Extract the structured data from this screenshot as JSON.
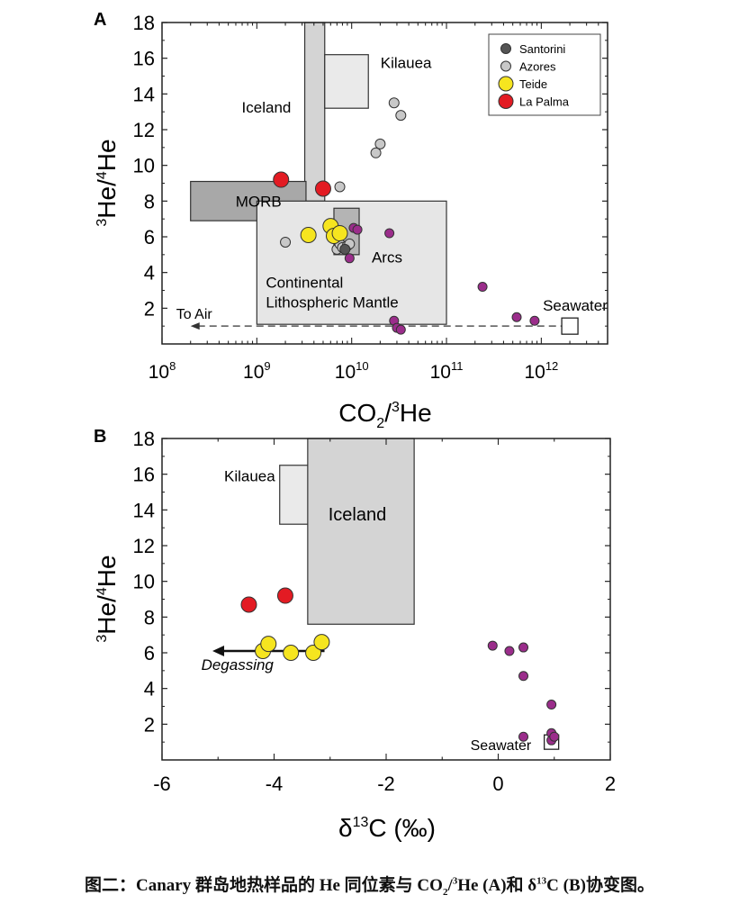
{
  "chart_data": [
    {
      "panel": "A",
      "type": "scatter",
      "xlabel": "CO2/3He",
      "ylabel": "3He/4He",
      "xscale": "log",
      "xlim": [
        100000000,
        5000000000000
      ],
      "ylim": [
        0,
        18
      ],
      "xticks": [
        "10^8",
        "10^9",
        "10^10",
        "10^11",
        "10^12"
      ],
      "yticks": [
        2,
        4,
        6,
        8,
        10,
        12,
        14,
        16,
        18
      ],
      "legend": {
        "placement": "top-right",
        "entries": [
          {
            "label": "Santorini",
            "color": "#555555",
            "size": "small"
          },
          {
            "label": "Azores",
            "color": "#c8c8c8",
            "size": "small"
          },
          {
            "label": "Teide",
            "color": "#f6e51f",
            "size": "large"
          },
          {
            "label": "La Palma",
            "color": "#e31b23",
            "size": "large"
          }
        ]
      },
      "regions": [
        {
          "label": "Iceland",
          "x": [
            3200000000,
            5200000000
          ],
          "y": [
            8,
            18
          ],
          "fill": "#d4d4d4"
        },
        {
          "label": "Kilauea",
          "x": [
            5200000000,
            15000000000
          ],
          "y": [
            13.2,
            16.2
          ],
          "fill": "#eaeaea"
        },
        {
          "label": "MORB",
          "x": [
            200000000,
            3300000000
          ],
          "y": [
            6.9,
            9.1
          ],
          "fill": "#a8a8a8"
        },
        {
          "label": "Continental Lithospheric Mantle",
          "x": [
            1000000000,
            100000000000
          ],
          "y": [
            1.1,
            8
          ],
          "fill": "#e6e6e6"
        },
        {
          "label": "Arcs",
          "x": [
            6500000000,
            12000000000
          ],
          "y": [
            5,
            7.6
          ],
          "fill": "#b4b4b4"
        }
      ],
      "seawater": {
        "label": "Seawater",
        "x": 2000000000000,
        "y": 1
      },
      "air_arrow": {
        "label": "To Air",
        "from": [
          1900000000000,
          1
        ],
        "to": [
          200000000,
          1
        ]
      },
      "series": [
        {
          "name": "Azores",
          "color": "#c8c8c8",
          "points": [
            [
              2000000000,
              5.7
            ],
            [
              7000000000,
              5.3
            ],
            [
              7500000000,
              5.6
            ],
            [
              8000000000,
              5.4
            ],
            [
              9000000000,
              5.5
            ],
            [
              9500000000,
              5.6
            ],
            [
              7500000000,
              8.8
            ],
            [
              18000000000,
              10.7
            ],
            [
              20000000000,
              11.2
            ],
            [
              28000000000,
              13.5
            ],
            [
              33000000000,
              12.8
            ]
          ]
        },
        {
          "name": "Santorini",
          "color": "#555555",
          "points": [
            [
              8500000000,
              5.3
            ]
          ]
        },
        {
          "name": "Teide",
          "color": "#f6e51f",
          "points": [
            [
              3500000000,
              6.1
            ],
            [
              6000000000,
              6.6
            ],
            [
              6500000000,
              6.05
            ],
            [
              7500000000,
              6.2
            ]
          ]
        },
        {
          "name": "La Palma",
          "color": "#e31b23",
          "points": [
            [
              1800000000,
              9.2
            ],
            [
              5000000000,
              8.7
            ]
          ]
        },
        {
          "name": "",
          "color": "#9b2d8b",
          "points": [
            [
              9500000000,
              4.8
            ],
            [
              10500000000,
              6.5
            ],
            [
              11500000000,
              6.4
            ],
            [
              25000000000,
              6.2
            ],
            [
              28000000000,
              1.3
            ],
            [
              30000000000,
              0.9
            ],
            [
              33000000000,
              0.8
            ],
            [
              240000000000,
              3.2
            ],
            [
              550000000000,
              1.5
            ],
            [
              850000000000,
              1.3
            ]
          ]
        }
      ]
    },
    {
      "panel": "B",
      "type": "scatter",
      "xlabel": "δ13C (‰)",
      "ylabel": "3He/4He",
      "xlim": [
        -6,
        2
      ],
      "ylim": [
        0,
        18
      ],
      "xticks": [
        -6,
        -4,
        -2,
        0,
        2
      ],
      "yticks": [
        2,
        4,
        6,
        8,
        10,
        12,
        14,
        16,
        18
      ],
      "regions": [
        {
          "label": "Kilauea",
          "x": [
            -3.9,
            -3.35
          ],
          "y": [
            13.2,
            16.5
          ],
          "fill": "#eaeaea"
        },
        {
          "label": "Iceland",
          "x": [
            -3.4,
            -1.5
          ],
          "y": [
            7.6,
            18
          ],
          "fill": "#d4d4d4"
        }
      ],
      "seawater": {
        "label": "Seawater",
        "x": 0.95,
        "y": 1
      },
      "degassing_arrow": {
        "label": "Degassing",
        "from": [
          -3.1,
          6.1
        ],
        "to": [
          -5.1,
          6.1
        ]
      },
      "series": [
        {
          "name": "La Palma",
          "color": "#e31b23",
          "points": [
            [
              -4.45,
              8.7
            ],
            [
              -3.8,
              9.2
            ]
          ]
        },
        {
          "name": "Teide",
          "color": "#f6e51f",
          "points": [
            [
              -4.2,
              6.1
            ],
            [
              -4.1,
              6.5
            ],
            [
              -3.7,
              6.0
            ],
            [
              -3.3,
              6.0
            ],
            [
              -3.15,
              6.6
            ]
          ]
        },
        {
          "name": "",
          "color": "#9b2d8b",
          "points": [
            [
              -0.1,
              6.4
            ],
            [
              0.2,
              6.1
            ],
            [
              0.45,
              6.3
            ],
            [
              0.45,
              4.7
            ],
            [
              0.45,
              1.3
            ],
            [
              0.95,
              3.1
            ],
            [
              0.95,
              1.5
            ],
            [
              0.95,
              1.1
            ],
            [
              1.0,
              1.3
            ]
          ]
        }
      ]
    }
  ],
  "panel_A": {
    "letter": "A",
    "y_title": {
      "sup": "3",
      "base1": "He/",
      "sup2": "4",
      "base2": "He"
    },
    "x_title": {
      "base1": "CO",
      "sub": "2",
      "base2": "/",
      "sup": "3",
      "base3": "He"
    },
    "xtick_labels": [
      {
        "base": "10",
        "exp": "8"
      },
      {
        "base": "10",
        "exp": "9"
      },
      {
        "base": "10",
        "exp": "10"
      },
      {
        "base": "10",
        "exp": "11"
      },
      {
        "base": "10",
        "exp": "12"
      }
    ]
  },
  "panel_B": {
    "letter": "B",
    "y_title": {
      "sup": "3",
      "base1": "He/",
      "sup2": "4",
      "base2": "He"
    },
    "x_title": {
      "base1": "δ",
      "sup": "13",
      "base2": "C (‰)"
    },
    "xtick_labels": [
      "-6",
      "-4",
      "-2",
      "0",
      "2"
    ]
  },
  "caption": {
    "prefix": "图二：Canary 群岛地热样品的 He 同位素与 CO",
    "sub": "2",
    "slash": "/",
    "sup": "3",
    "middle": "He (A)和  δ",
    "sup2": "13",
    "suffix": "C (B)协变图。"
  }
}
